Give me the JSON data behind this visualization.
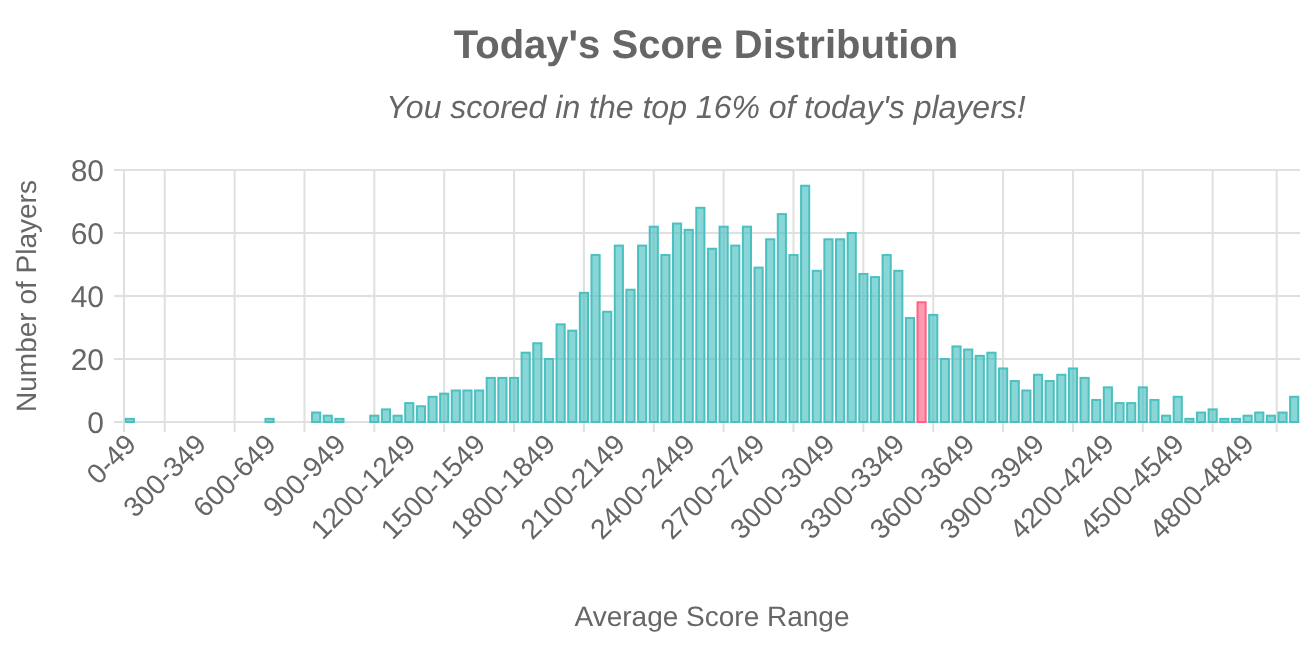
{
  "chart_data": {
    "type": "bar",
    "title": "Today's Score Distribution",
    "subtitle": "You scored in the top 16% of today's players!",
    "xlabel": "Average Score Range",
    "ylabel": "Number of Players",
    "categories": [
      "0-49",
      null,
      null,
      null,
      null,
      null,
      "300-349",
      null,
      null,
      null,
      null,
      null,
      "600-649",
      null,
      null,
      null,
      null,
      null,
      "900-949",
      null,
      null,
      null,
      null,
      null,
      "1200-1249",
      null,
      null,
      null,
      null,
      null,
      "1500-1549",
      null,
      null,
      null,
      null,
      null,
      "1800-1849",
      null,
      null,
      null,
      null,
      null,
      "2100-2149",
      null,
      null,
      null,
      null,
      null,
      "2400-2449",
      null,
      null,
      null,
      null,
      null,
      "2700-2749",
      null,
      null,
      null,
      null,
      null,
      "3000-3049",
      null,
      null,
      null,
      null,
      null,
      "3300-3349",
      null,
      null,
      null,
      null,
      null,
      "3600-3649",
      null,
      null,
      null,
      null,
      null,
      "3900-3949",
      null,
      null,
      null,
      null,
      null,
      "4200-4249",
      null,
      null,
      null,
      null,
      null,
      "4500-4549",
      null,
      null,
      null,
      null,
      null,
      "4800-4849",
      null,
      null,
      null,
      null
    ],
    "values": [
      1,
      0,
      0,
      0,
      0,
      0,
      0,
      0,
      0,
      0,
      0,
      0,
      1,
      0,
      0,
      0,
      3,
      2,
      1,
      0,
      0,
      2,
      4,
      2,
      6,
      5,
      8,
      9,
      10,
      10,
      10,
      14,
      14,
      14,
      22,
      25,
      20,
      31,
      29,
      41,
      53,
      35,
      56,
      42,
      56,
      62,
      53,
      63,
      61,
      68,
      55,
      62,
      56,
      62,
      49,
      58,
      66,
      53,
      75,
      48,
      58,
      58,
      60,
      47,
      46,
      53,
      48,
      33,
      38,
      34,
      20,
      24,
      23,
      21,
      22,
      17,
      13,
      10,
      15,
      13,
      15,
      17,
      14,
      7,
      11,
      6,
      6,
      11,
      7,
      2,
      8,
      1,
      3,
      4,
      1,
      1,
      2,
      3,
      2,
      3,
      8
    ],
    "colors": [
      "#4bc0c0",
      "#4bc0c0",
      "#4bc0c0",
      "#4bc0c0",
      "#4bc0c0",
      "#4bc0c0",
      "#4bc0c0",
      "#4bc0c0",
      "#4bc0c0",
      "#4bc0c0",
      "#4bc0c0",
      "#4bc0c0",
      "#4bc0c0",
      "#4bc0c0",
      "#4bc0c0",
      "#4bc0c0",
      "#4bc0c0",
      "#4bc0c0",
      "#4bc0c0",
      "#4bc0c0",
      "#4bc0c0",
      "#4bc0c0",
      "#4bc0c0",
      "#4bc0c0",
      "#4bc0c0",
      "#4bc0c0",
      "#4bc0c0",
      "#4bc0c0",
      "#4bc0c0",
      "#4bc0c0",
      "#4bc0c0",
      "#4bc0c0",
      "#4bc0c0",
      "#4bc0c0",
      "#4bc0c0",
      "#4bc0c0",
      "#4bc0c0",
      "#4bc0c0",
      "#4bc0c0",
      "#4bc0c0",
      "#4bc0c0",
      "#4bc0c0",
      "#4bc0c0",
      "#4bc0c0",
      "#4bc0c0",
      "#4bc0c0",
      "#4bc0c0",
      "#4bc0c0",
      "#4bc0c0",
      "#4bc0c0",
      "#4bc0c0",
      "#4bc0c0",
      "#4bc0c0",
      "#4bc0c0",
      "#4bc0c0",
      "#4bc0c0",
      "#4bc0c0",
      "#4bc0c0",
      "#4bc0c0",
      "#4bc0c0",
      "#4bc0c0",
      "#4bc0c0",
      "#4bc0c0",
      "#4bc0c0",
      "#4bc0c0",
      "#4bc0c0",
      "#4bc0c0",
      "#4bc0c0",
      "#ff6384",
      "#4bc0c0",
      "#4bc0c0",
      "#4bc0c0",
      "#4bc0c0",
      "#4bc0c0",
      "#4bc0c0",
      "#4bc0c0",
      "#4bc0c0",
      "#4bc0c0",
      "#4bc0c0",
      "#4bc0c0",
      "#4bc0c0",
      "#4bc0c0",
      "#4bc0c0",
      "#4bc0c0",
      "#4bc0c0",
      "#4bc0c0",
      "#4bc0c0",
      "#4bc0c0",
      "#4bc0c0",
      "#4bc0c0",
      "#4bc0c0",
      "#4bc0c0",
      "#4bc0c0",
      "#4bc0c0",
      "#4bc0c0",
      "#4bc0c0",
      "#4bc0c0",
      "#4bc0c0",
      "#4bc0c0",
      "#4bc0c0",
      "#4bc0c0"
    ],
    "ylim": [
      0,
      80
    ],
    "yticks": [
      0,
      20,
      40,
      60,
      80
    ],
    "grid": true
  }
}
